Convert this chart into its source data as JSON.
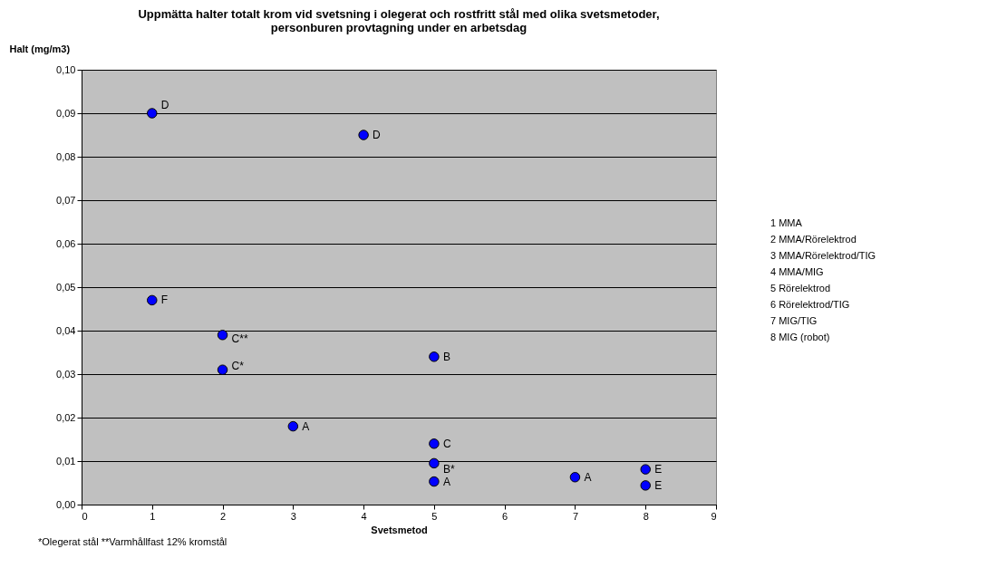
{
  "chart_data": {
    "type": "scatter",
    "title": "Uppmätta halter totalt krom vid svetsning i olegerat och rostfritt stål med olika svetsmetoder,\npersonburen provtagning under en arbetsdag",
    "xlabel": "Svetsmetod",
    "ylabel": "Halt (mg/m3)",
    "x": [
      1,
      4,
      1,
      2,
      2,
      3,
      5,
      5,
      5,
      5,
      7,
      8,
      8
    ],
    "series": [
      {
        "color": "#0000ff",
        "values": [
          0.09,
          0.085,
          0.047,
          0.039,
          0.031,
          0.018,
          0.034,
          0.014,
          0.0095,
          0.0053,
          0.0063,
          0.0081,
          0.0044
        ]
      }
    ],
    "xlim": [
      0,
      9
    ],
    "xticks": [
      0,
      1,
      2,
      3,
      4,
      5,
      6,
      7,
      8,
      9
    ],
    "ylim": [
      0,
      0.1
    ],
    "yticks": [
      {
        "value": 0,
        "label": "0,00"
      },
      {
        "value": 0.01,
        "label": "0,01"
      },
      {
        "value": 0.02,
        "label": "0,02"
      },
      {
        "value": 0.03,
        "label": "0,03"
      },
      {
        "value": 0.04,
        "label": "0,04"
      },
      {
        "value": 0.05,
        "label": "0,05"
      },
      {
        "value": 0.06,
        "label": "0,06"
      },
      {
        "value": 0.07,
        "label": "0,07"
      },
      {
        "value": 0.08,
        "label": "0,08"
      },
      {
        "value": 0.09,
        "label": "0,09"
      },
      {
        "value": 0.1,
        "label": "0,10"
      }
    ],
    "grid": "y",
    "marker": "circle",
    "annotations": [
      {
        "text": "D",
        "x": 1,
        "y": 0.09
      },
      {
        "text": "D",
        "x": 4,
        "y": 0.085
      },
      {
        "text": "F",
        "x": 1,
        "y": 0.047
      },
      {
        "text": "C**",
        "x": 2,
        "y": 0.039
      },
      {
        "text": "C*",
        "x": 2,
        "y": 0.031
      },
      {
        "text": "A",
        "x": 3,
        "y": 0.018
      },
      {
        "text": "B",
        "x": 5,
        "y": 0.034
      },
      {
        "text": "C",
        "x": 5,
        "y": 0.014
      },
      {
        "text": "B*",
        "x": 5,
        "y": 0.0095
      },
      {
        "text": "A",
        "x": 5,
        "y": 0.0053
      },
      {
        "text": "A",
        "x": 7,
        "y": 0.0063
      },
      {
        "text": "E",
        "x": 8,
        "y": 0.0081
      },
      {
        "text": "E",
        "x": 8,
        "y": 0.0044
      },
      "1 MMA",
      "2 MMA/Rörelektrod",
      "3 MMA/Rörelektrod/TIG",
      "4 MMA/MIG",
      "5 Rörelektrod",
      "6 Rörelektrod/TIG",
      "7 MIG/TIG",
      "8 MIG (robot)",
      "*Olegerat stål  **Varmhållfast 12% kromstål"
    ]
  }
}
